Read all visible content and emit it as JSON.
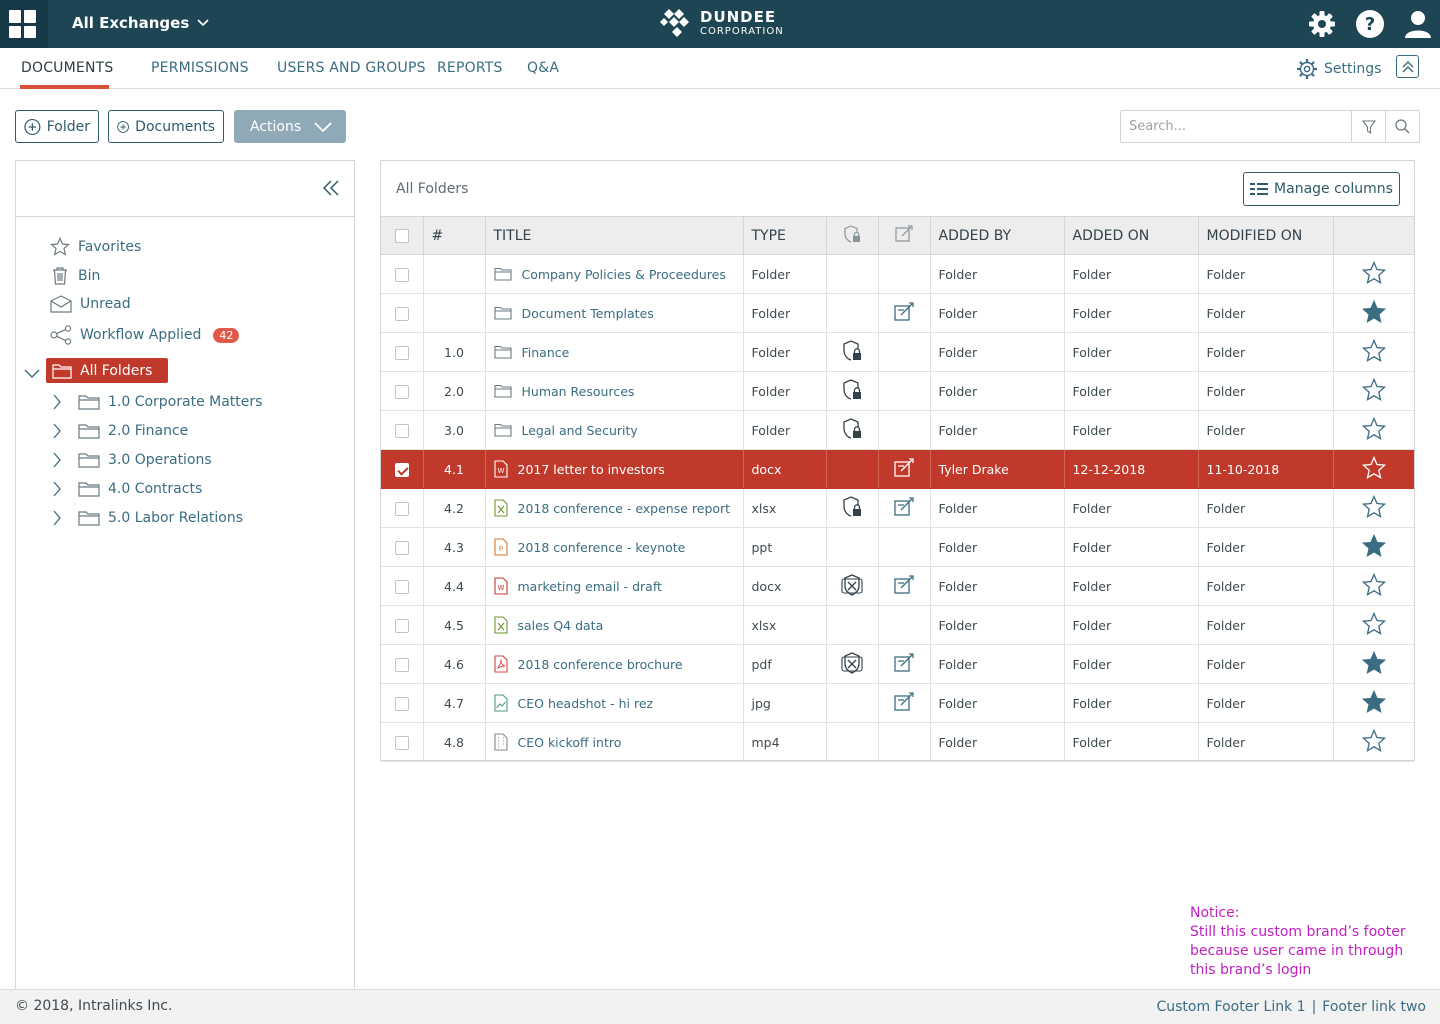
{
  "header": {
    "exchange_label": "All Exchanges",
    "logo_main": "DUNDEE",
    "logo_sub": "CORPORATION",
    "icons": [
      "gear-icon",
      "help-icon",
      "user-icon"
    ]
  },
  "nav": {
    "tabs": [
      "DOCUMENTS",
      "PERMISSIONS",
      "USERS AND GROUPS",
      "REPORTS",
      "Q&A"
    ],
    "active_tab": "DOCUMENTS",
    "settings_label": "Settings"
  },
  "toolbar": {
    "folder_label": "Folder",
    "documents_label": "Documents",
    "actions_label": "Actions",
    "search_placeholder": "Search..."
  },
  "sidebar": {
    "items": [
      {
        "label": "Favorites",
        "icon": "star-icon"
      },
      {
        "label": "Bin",
        "icon": "trash-icon"
      },
      {
        "label": "Unread",
        "icon": "envelope-icon"
      },
      {
        "label": "Workflow Applied",
        "icon": "share-icon",
        "badge": "42"
      }
    ],
    "root": "All Folders",
    "folders": [
      "1.0 Corporate Matters",
      "2.0 Finance",
      "3.0 Operations",
      "4.0 Contracts",
      "5.0 Labor Relations"
    ]
  },
  "main": {
    "panel_title": "All Folders",
    "manage_columns_label": "Manage columns",
    "columns": [
      "#",
      "TITLE",
      "TYPE",
      "ADDED BY",
      "ADDED ON",
      "MODIFIED ON"
    ],
    "rows": [
      {
        "num": "",
        "title": "Company Policies & Proceedures",
        "type": "Folder",
        "file_icon": "folder",
        "lock": "",
        "edit": false,
        "added_by": "Folder",
        "added_on": "Folder",
        "modified_on": "Folder",
        "starred": false,
        "selected": false
      },
      {
        "num": "",
        "title": "Document Templates",
        "type": "Folder",
        "file_icon": "folder",
        "lock": "",
        "edit": true,
        "added_by": "Folder",
        "added_on": "Folder",
        "modified_on": "Folder",
        "starred": true,
        "selected": false
      },
      {
        "num": "1.0",
        "title": "Finance",
        "type": "Folder",
        "file_icon": "folder",
        "lock": "lock",
        "edit": false,
        "added_by": "Folder",
        "added_on": "Folder",
        "modified_on": "Folder",
        "starred": false,
        "selected": false
      },
      {
        "num": "2.0",
        "title": "Human Resources",
        "type": "Folder",
        "file_icon": "folder",
        "lock": "lock",
        "edit": false,
        "added_by": "Folder",
        "added_on": "Folder",
        "modified_on": "Folder",
        "starred": false,
        "selected": false
      },
      {
        "num": "3.0",
        "title": "Legal and Security",
        "type": "Folder",
        "file_icon": "folder",
        "lock": "lock",
        "edit": false,
        "added_by": "Folder",
        "added_on": "Folder",
        "modified_on": "Folder",
        "starred": false,
        "selected": false
      },
      {
        "num": "4.1",
        "title": "2017 letter to investors",
        "type": "docx",
        "file_icon": "word",
        "lock": "",
        "edit": true,
        "added_by": "Tyler Drake",
        "added_on": "12-12-2018",
        "modified_on": "11-10-2018",
        "starred": false,
        "selected": true
      },
      {
        "num": "4.2",
        "title": "2018 conference - expense report",
        "type": "xlsx",
        "file_icon": "excel",
        "lock": "lock",
        "edit": true,
        "added_by": "Folder",
        "added_on": "Folder",
        "modified_on": "Folder",
        "starred": false,
        "selected": false
      },
      {
        "num": "4.3",
        "title": "2018 conference - keynote",
        "type": "ppt",
        "file_icon": "ppt",
        "lock": "",
        "edit": false,
        "added_by": "Folder",
        "added_on": "Folder",
        "modified_on": "Folder",
        "starred": true,
        "selected": false
      },
      {
        "num": "4.4",
        "title": "marketing email - draft",
        "type": "docx",
        "file_icon": "word",
        "lock": "x",
        "edit": true,
        "added_by": "Folder",
        "added_on": "Folder",
        "modified_on": "Folder",
        "starred": false,
        "selected": false
      },
      {
        "num": "4.5",
        "title": "sales Q4 data",
        "type": "xlsx",
        "file_icon": "excel",
        "lock": "",
        "edit": false,
        "added_by": "Folder",
        "added_on": "Folder",
        "modified_on": "Folder",
        "starred": false,
        "selected": false
      },
      {
        "num": "4.6",
        "title": "2018 conference brochure",
        "type": "pdf",
        "file_icon": "pdf",
        "lock": "x",
        "edit": true,
        "added_by": "Folder",
        "added_on": "Folder",
        "modified_on": "Folder",
        "starred": true,
        "selected": false
      },
      {
        "num": "4.7",
        "title": "CEO headshot - hi rez",
        "type": "jpg",
        "file_icon": "image",
        "lock": "",
        "edit": true,
        "added_by": "Folder",
        "added_on": "Folder",
        "modified_on": "Folder",
        "starred": true,
        "selected": false
      },
      {
        "num": "4.8",
        "title": "CEO kickoff intro",
        "type": "mp4",
        "file_icon": "video",
        "lock": "",
        "edit": false,
        "added_by": "Folder",
        "added_on": "Folder",
        "modified_on": "Folder",
        "starred": false,
        "selected": false
      }
    ]
  },
  "notice": {
    "heading": "Notice:",
    "text": "Still this custom brand’s footer because user came in through this brand’s login"
  },
  "footer": {
    "copyright": "© 2018, Intralinks Inc.",
    "link1": "Custom Footer Link 1",
    "separator": "|",
    "link2": "Footer link two"
  },
  "colors": {
    "topbar": "#1d4554",
    "accent_red": "#c0392b",
    "tab_underline": "#d9503a",
    "link": "#3b6d82",
    "notice": "#c21fc2",
    "word": "#c0392b",
    "excel": "#6a9a2a",
    "ppt": "#d9762a",
    "pdf": "#d94040",
    "image": "#4d9a7a",
    "video": "#888888"
  }
}
